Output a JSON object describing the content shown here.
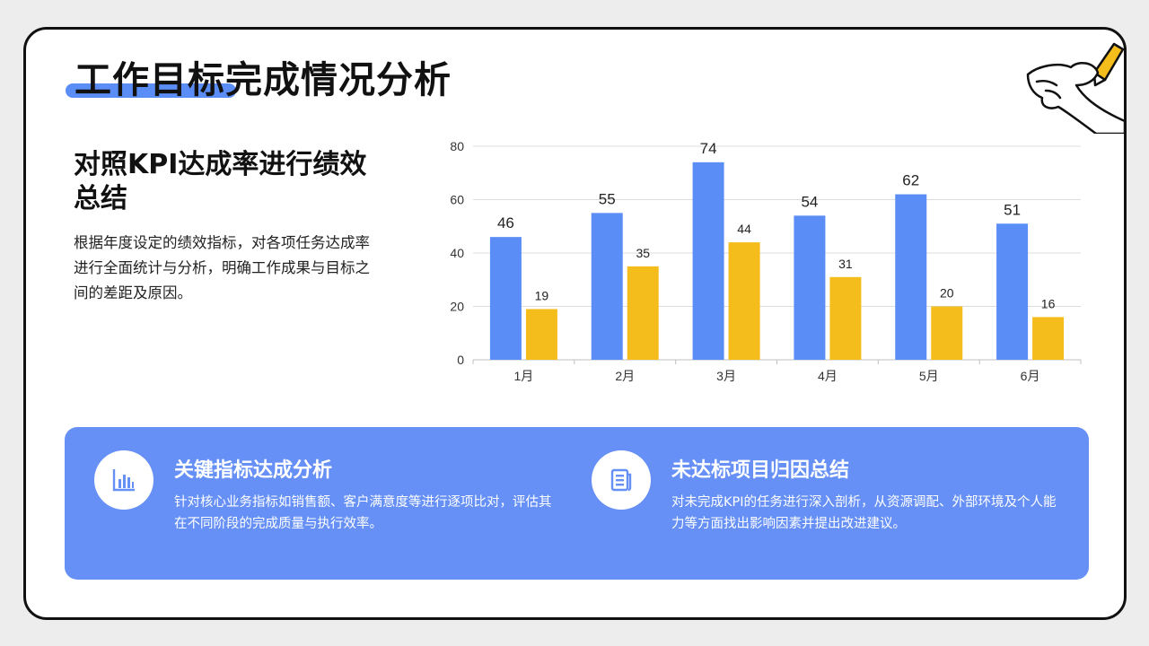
{
  "title": "工作目标完成情况分析",
  "subhead": "对照KPI达成率进行绩效总结",
  "description": "根据年度设定的绩效指标，对各项任务达成率进行全面统计与分析，明确工作成果与目标之间的差距及原因。",
  "cards": [
    {
      "icon": "bar-chart-icon",
      "title": "关键指标达成分析",
      "text": "针对核心业务指标如销售额、客户满意度等进行逐项比对，评估其在不同阶段的完成质量与执行效率。"
    },
    {
      "icon": "document-icon",
      "title": "未达标项目归因总结",
      "text": "对未完成KPI的任务进行深入剖析，从资源调配、外部环境及个人能力等方面找出影响因素并提出改进建议。"
    }
  ],
  "colors": {
    "accent_blue": "#6690f5",
    "bar_blue": "#5b8df6",
    "bar_yellow": "#f5bd1c",
    "pencil_yellow": "#f5bd1c"
  },
  "chart_data": {
    "type": "bar",
    "categories": [
      "1月",
      "2月",
      "3月",
      "4月",
      "5月",
      "6月"
    ],
    "series": [
      {
        "values": [
          46,
          55,
          74,
          54,
          62,
          51
        ],
        "color": "#5b8df6"
      },
      {
        "values": [
          19,
          35,
          44,
          31,
          20,
          16
        ],
        "color": "#f5bd1c"
      }
    ],
    "ylim": [
      0,
      80
    ],
    "yticks": [
      0,
      20,
      40,
      60,
      80
    ],
    "grid": true,
    "legend": "none",
    "data_labels": true
  }
}
